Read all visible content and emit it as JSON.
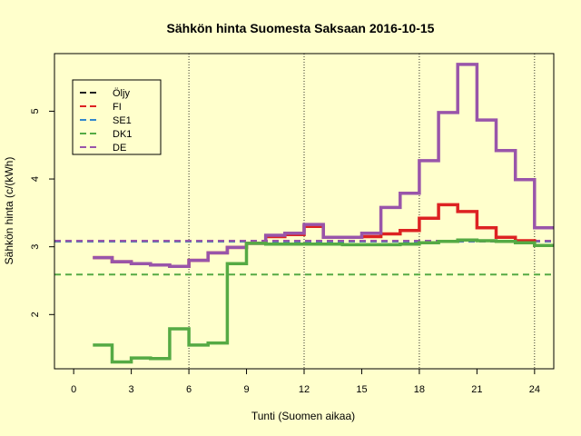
{
  "chart_data": {
    "type": "line",
    "title": "Sähkön hinta Suomesta Saksaan 2016-10-15",
    "xlabel": "Tunti (Suomen aikaa)",
    "ylabel": "Sähkön hinta (c/(kWh)",
    "xlim": [
      -1,
      25
    ],
    "ylim": [
      1.2,
      5.85
    ],
    "xticks": [
      0,
      3,
      6,
      9,
      12,
      15,
      18,
      21,
      24
    ],
    "yticks": [
      2,
      3,
      4,
      5
    ],
    "vlines": [
      6,
      12,
      18,
      24
    ],
    "hours": [
      1,
      2,
      3,
      4,
      5,
      6,
      7,
      8,
      9,
      10,
      11,
      12,
      13,
      14,
      15,
      16,
      17,
      18,
      19,
      20,
      21,
      22,
      23,
      24
    ],
    "series": [
      {
        "name": "FI",
        "color": "#DD2222",
        "values": [
          2.84,
          2.78,
          2.75,
          2.73,
          2.71,
          2.8,
          2.91,
          2.99,
          3.05,
          3.15,
          3.18,
          3.3,
          3.14,
          3.14,
          3.15,
          3.19,
          3.24,
          3.42,
          3.62,
          3.52,
          3.28,
          3.14,
          3.09,
          3.02
        ]
      },
      {
        "name": "DE",
        "color": "#9955AA",
        "values": [
          2.84,
          2.78,
          2.75,
          2.73,
          2.71,
          2.8,
          2.91,
          2.99,
          3.05,
          3.17,
          3.2,
          3.33,
          3.14,
          3.14,
          3.2,
          3.58,
          3.79,
          4.27,
          4.98,
          5.69,
          4.87,
          4.42,
          3.99,
          3.28
        ]
      },
      {
        "name": "DK1",
        "color": "#55AA44",
        "values": [
          1.55,
          1.3,
          1.36,
          1.35,
          1.79,
          1.55,
          1.58,
          2.75,
          3.05,
          3.04,
          3.04,
          3.04,
          3.04,
          3.03,
          3.03,
          3.03,
          3.04,
          3.06,
          3.08,
          3.1,
          3.09,
          3.08,
          3.06,
          3.02
        ]
      }
    ],
    "reference_lines": [
      {
        "name": "Öljy",
        "color": "#222222",
        "value": 3.08
      },
      {
        "name": "FI",
        "color": "#DD2222",
        "value": 3.08
      },
      {
        "name": "SE1",
        "color": "#3388CC",
        "value": 3.08
      },
      {
        "name": "DE",
        "color": "#9955AA",
        "value": 3.09
      },
      {
        "name": "DK1",
        "color": "#55AA44",
        "value": 2.59
      }
    ],
    "legend": {
      "position": "top-left",
      "entries": [
        {
          "label": "Öljy",
          "color": "#222222"
        },
        {
          "label": "FI",
          "color": "#DD2222"
        },
        {
          "label": "SE1",
          "color": "#3388CC"
        },
        {
          "label": "DK1",
          "color": "#55AA44"
        },
        {
          "label": "DE",
          "color": "#9955AA"
        }
      ]
    }
  }
}
